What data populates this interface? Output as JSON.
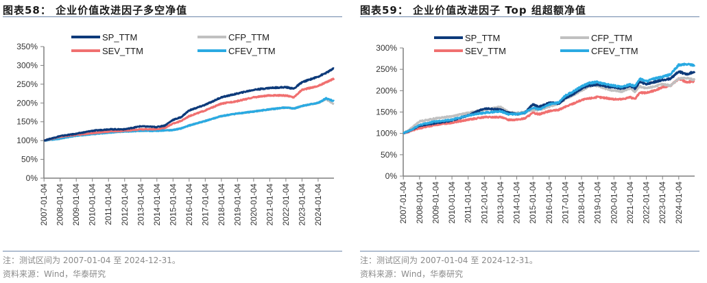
{
  "charts": [
    {
      "id": "fig58",
      "title": "图表58：  企业价值改进因子多空净值",
      "note": "注：测试区间为 2007-01-04 至 2024-12-31。",
      "source": "资料来源：Wind，华泰研究"
    },
    {
      "id": "fig59",
      "title": "图表59：  企业价值改进因子 Top 组超额净值",
      "note": "注：测试区间为 2007-01-04 至 2024-12-31。",
      "source": "资料来源：Wind，华泰研究"
    }
  ],
  "chart_data": [
    {
      "type": "line",
      "title": "企业价值改进因子多空净值",
      "xlabel": "",
      "ylabel": "",
      "ylim": [
        0,
        3.5
      ],
      "yticks": [
        "0%",
        "50%",
        "100%",
        "150%",
        "200%",
        "250%",
        "300%",
        "350%"
      ],
      "yvalues": [
        0,
        0.5,
        1.0,
        1.5,
        2.0,
        2.5,
        3.0,
        3.5
      ],
      "x_range": [
        "2007-01-04",
        "2024-12-31"
      ],
      "xticks": [
        "2007-01-04",
        "2008-01-04",
        "2009-01-04",
        "2010-01-04",
        "2011-01-04",
        "2012-01-04",
        "2013-01-04",
        "2014-01-04",
        "2015-01-04",
        "2016-01-04",
        "2017-01-04",
        "2018-01-04",
        "2019-01-04",
        "2020-01-04",
        "2021-01-04",
        "2022-01-04",
        "2023-01-04",
        "2024-01-04"
      ],
      "grid": false,
      "legend_position": "top",
      "x": [
        2007.0,
        2008.0,
        2009.0,
        2010.0,
        2011.0,
        2012.0,
        2013.0,
        2014.0,
        2014.5,
        2015.0,
        2015.5,
        2016.0,
        2017.0,
        2018.0,
        2019.0,
        2020.0,
        2021.0,
        2022.0,
        2022.5,
        2023.0,
        2024.0,
        2024.5,
        2024.99
      ],
      "series": [
        {
          "name": "SP_TTM",
          "color": "#0d3a7a",
          "values": [
            1.0,
            1.12,
            1.18,
            1.26,
            1.3,
            1.3,
            1.38,
            1.36,
            1.4,
            1.55,
            1.62,
            1.8,
            1.95,
            2.15,
            2.25,
            2.35,
            2.4,
            2.42,
            2.38,
            2.55,
            2.7,
            2.8,
            2.92
          ]
        },
        {
          "name": "CFP_TTM",
          "color": "#c0c0c0",
          "values": [
            1.0,
            1.05,
            1.13,
            1.17,
            1.21,
            1.24,
            1.26,
            1.26,
            1.27,
            1.28,
            1.32,
            1.4,
            1.52,
            1.65,
            1.72,
            1.77,
            1.83,
            1.88,
            1.85,
            1.92,
            2.0,
            2.1,
            1.97
          ]
        },
        {
          "name": "SEV_TTM",
          "color": "#f07070",
          "values": [
            1.0,
            1.1,
            1.15,
            1.2,
            1.24,
            1.26,
            1.3,
            1.3,
            1.34,
            1.45,
            1.52,
            1.65,
            1.8,
            1.98,
            2.05,
            2.15,
            2.2,
            2.2,
            2.15,
            2.35,
            2.45,
            2.55,
            2.65
          ]
        },
        {
          "name": "CFEV_TTM",
          "color": "#2aaae2",
          "values": [
            1.0,
            1.05,
            1.13,
            1.17,
            1.21,
            1.24,
            1.26,
            1.26,
            1.27,
            1.28,
            1.32,
            1.4,
            1.52,
            1.65,
            1.72,
            1.77,
            1.83,
            1.88,
            1.85,
            1.92,
            2.0,
            2.12,
            2.05
          ]
        }
      ]
    },
    {
      "type": "line",
      "title": "企业价值改进因子 Top 组超额净值",
      "xlabel": "",
      "ylabel": "",
      "ylim": [
        0,
        3.0
      ],
      "yticks": [
        "0%",
        "50%",
        "100%",
        "150%",
        "200%",
        "250%",
        "300%"
      ],
      "yvalues": [
        0,
        0.5,
        1.0,
        1.5,
        2.0,
        2.5,
        3.0
      ],
      "x_range": [
        "2007-01-04",
        "2024-12-31"
      ],
      "xticks": [
        "2007-01-04",
        "2008-01-04",
        "2009-01-04",
        "2010-01-04",
        "2011-01-04",
        "2012-01-04",
        "2013-01-04",
        "2014-01-04",
        "2015-01-04",
        "2016-01-04",
        "2017-01-04",
        "2018-01-04",
        "2019-01-04",
        "2020-01-04",
        "2021-01-04",
        "2022-01-04",
        "2023-01-04",
        "2024-01-04"
      ],
      "grid": false,
      "legend_position": "top",
      "x": [
        2007.0,
        2007.5,
        2008.0,
        2009.0,
        2010.0,
        2011.0,
        2011.5,
        2012.0,
        2013.0,
        2013.5,
        2014.0,
        2014.5,
        2015.0,
        2015.4,
        2016.0,
        2016.6,
        2017.0,
        2017.5,
        2018.0,
        2018.5,
        2019.0,
        2019.5,
        2020.0,
        2020.5,
        2021.0,
        2021.3,
        2021.6,
        2022.0,
        2022.5,
        2023.0,
        2023.5,
        2024.0,
        2024.5,
        2024.99
      ],
      "series": [
        {
          "name": "SP_TTM",
          "color": "#0d3a7a",
          "values": [
            1.0,
            1.08,
            1.18,
            1.24,
            1.3,
            1.42,
            1.5,
            1.58,
            1.56,
            1.48,
            1.45,
            1.48,
            1.68,
            1.62,
            1.72,
            1.7,
            1.82,
            1.92,
            2.05,
            2.12,
            2.15,
            2.1,
            2.08,
            2.05,
            2.12,
            2.05,
            2.2,
            2.15,
            2.2,
            2.25,
            2.28,
            2.45,
            2.38,
            2.45
          ]
        },
        {
          "name": "CFP_TTM",
          "color": "#c0c0c0",
          "values": [
            1.0,
            1.12,
            1.28,
            1.35,
            1.4,
            1.48,
            1.52,
            1.55,
            1.62,
            1.5,
            1.48,
            1.5,
            1.55,
            1.55,
            1.62,
            1.7,
            1.8,
            1.9,
            2.0,
            2.1,
            2.12,
            2.05,
            2.0,
            1.98,
            2.05,
            1.98,
            2.1,
            2.05,
            2.1,
            2.15,
            2.12,
            2.28,
            2.3,
            2.25
          ]
        },
        {
          "name": "SEV_TTM",
          "color": "#f07070",
          "values": [
            1.0,
            1.06,
            1.12,
            1.2,
            1.25,
            1.32,
            1.35,
            1.38,
            1.38,
            1.32,
            1.32,
            1.35,
            1.48,
            1.45,
            1.52,
            1.55,
            1.62,
            1.7,
            1.78,
            1.82,
            1.85,
            1.83,
            1.8,
            1.8,
            1.85,
            1.8,
            1.95,
            1.95,
            2.0,
            2.08,
            2.12,
            2.28,
            2.2,
            2.22
          ]
        },
        {
          "name": "CFEV_TTM",
          "color": "#2aaae2",
          "values": [
            1.0,
            1.08,
            1.2,
            1.28,
            1.32,
            1.42,
            1.45,
            1.48,
            1.52,
            1.45,
            1.45,
            1.48,
            1.6,
            1.56,
            1.68,
            1.72,
            1.88,
            1.98,
            2.1,
            2.18,
            2.2,
            2.15,
            2.12,
            2.08,
            2.15,
            2.1,
            2.28,
            2.22,
            2.28,
            2.32,
            2.38,
            2.6,
            2.62,
            2.6
          ]
        }
      ]
    }
  ]
}
